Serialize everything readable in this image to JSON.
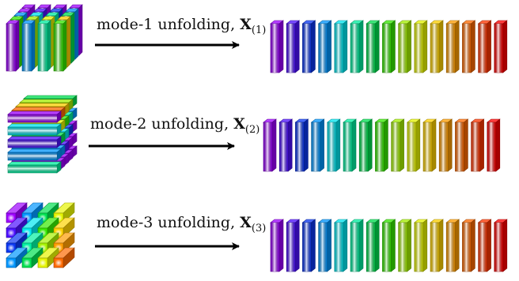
{
  "palette": [
    "#9d00ff",
    "#4d10ff",
    "#0a37f2",
    "#0096ff",
    "#00e6f0",
    "#00f0a0",
    "#00e050",
    "#36ea00",
    "#a6f200",
    "#e6f400",
    "#ffd200",
    "#ff9d00",
    "#ff6a00",
    "#ff3600",
    "#ff0000"
  ],
  "rows": [
    {
      "id": "mode-1",
      "label_text": "mode-1 unfolding, ",
      "label_symbol": "X",
      "label_subscript": "(1)",
      "tensor_style": "vertical-fibers"
    },
    {
      "id": "mode-2",
      "label_text": "mode-2 unfolding, ",
      "label_symbol": "X",
      "label_subscript": "(2)",
      "tensor_style": "horizontal-fibers"
    },
    {
      "id": "mode-3",
      "label_text": "mode-3 unfolding, ",
      "label_symbol": "X",
      "label_subscript": "(3)",
      "tensor_style": "depth-fibers"
    }
  ]
}
